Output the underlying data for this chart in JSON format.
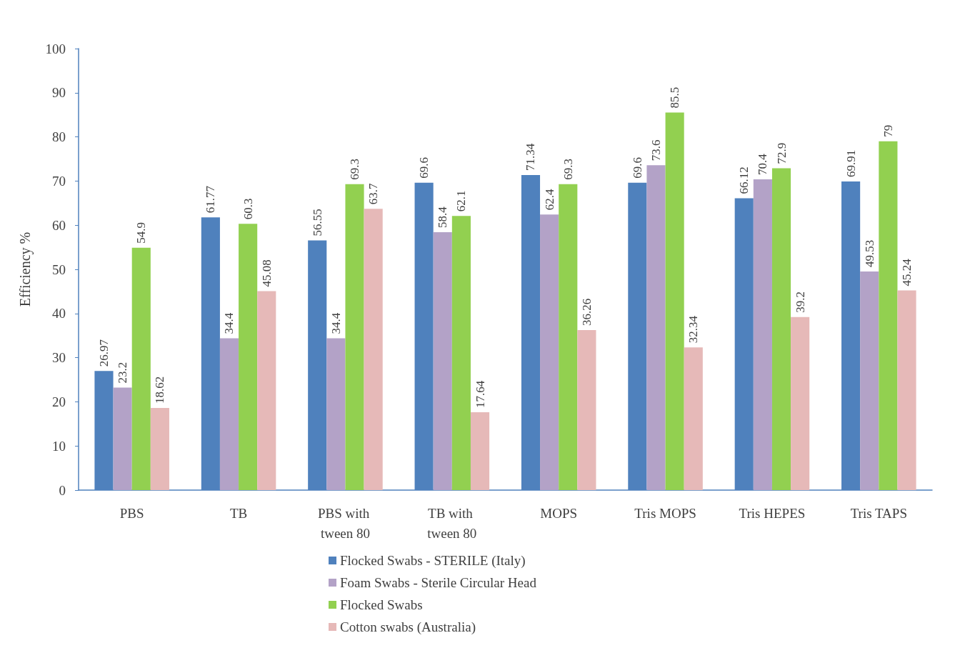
{
  "chart_data": {
    "type": "bar",
    "ylabel": "Efficiency %",
    "categories": [
      "PBS",
      "TB",
      "PBS with tween 80",
      "TB with tween 80",
      "MOPS",
      "Tris MOPS",
      "Tris HEPES",
      "Tris TAPS"
    ],
    "series": [
      {
        "name": "Flocked Swabs - STERILE (Italy)",
        "color": "#4f81bd",
        "values": [
          26.97,
          61.77,
          56.55,
          69.6,
          71.34,
          69.6,
          66.12,
          69.91
        ]
      },
      {
        "name": "Foam Swabs - Sterile Circular Head",
        "color": "#b3a2c7",
        "values": [
          23.2,
          34.4,
          34.4,
          58.4,
          62.4,
          73.6,
          70.4,
          49.53
        ]
      },
      {
        "name": "Flocked Swabs",
        "color": "#92d050",
        "values": [
          54.9,
          60.3,
          69.3,
          62.1,
          69.3,
          85.5,
          72.9,
          79
        ]
      },
      {
        "name": "Cotton swabs (Australia)",
        "color": "#e6b9b8",
        "values": [
          18.62,
          45.08,
          63.7,
          17.64,
          36.26,
          32.34,
          39.2,
          45.24
        ]
      }
    ],
    "ylim": [
      0,
      100
    ],
    "yticks": [
      0,
      10,
      20,
      30,
      40,
      50,
      60,
      70,
      80,
      90,
      100
    ],
    "grid": false,
    "legend": "bottom",
    "data_labels": true
  }
}
